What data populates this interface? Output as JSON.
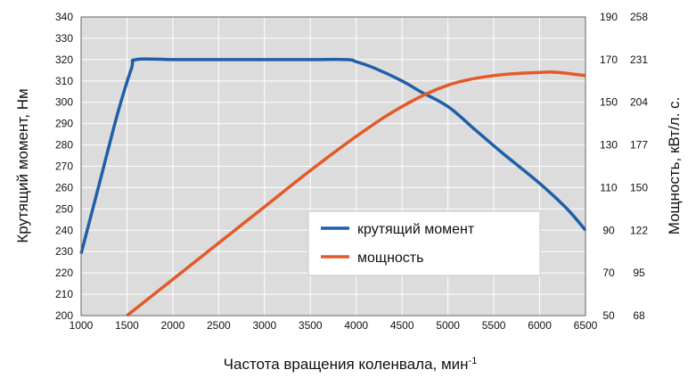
{
  "chart_data": {
    "type": "line",
    "title": "",
    "xlabel": "Частота вращения коленвала, мин",
    "xlabel_superscript": "-1",
    "ylabel_left": "Крутящий момент, Нм",
    "ylabel_right": "Мощность, кВт/л. с.",
    "xlim": [
      1000,
      6500
    ],
    "x_ticks": [
      "1000",
      "1500",
      "2000",
      "2500",
      "3000",
      "3500",
      "4000",
      "4500",
      "5000",
      "5500",
      "6000",
      "6500"
    ],
    "ylim_left": [
      200,
      340
    ],
    "y_left_ticks": [
      "200",
      "210",
      "220",
      "230",
      "240",
      "250",
      "260",
      "270",
      "280",
      "290",
      "300",
      "310",
      "320",
      "330",
      "340"
    ],
    "y_right_kw_ticks": [
      "50",
      "70",
      "90",
      "110",
      "130",
      "150",
      "170",
      "190"
    ],
    "y_right_hp_ticks": [
      "68",
      "95",
      "122",
      "150",
      "177",
      "204",
      "231",
      "258"
    ],
    "ylim_right_kw": [
      50,
      190
    ],
    "grid": true,
    "legend_position": "center-right",
    "colors": {
      "torque": "#1f5fa8",
      "power": "#e35a2a",
      "grid": "#ffffff",
      "plot_bg": "#dcdcdc",
      "frame": "#666666"
    },
    "series": [
      {
        "name": "крутящий момент",
        "axis": "left",
        "x": [
          1000,
          1200,
          1400,
          1550,
          1600,
          2000,
          2500,
          3000,
          3500,
          3900,
          4000,
          4200,
          4500,
          4700,
          5000,
          5300,
          5600,
          6000,
          6300,
          6500
        ],
        "y": [
          229,
          262,
          295,
          316,
          320,
          320,
          320,
          320,
          320,
          320,
          319,
          316,
          310,
          305,
          298,
          287,
          276,
          262,
          250,
          240
        ]
      },
      {
        "name": "мощность",
        "axis": "right",
        "x": [
          1500,
          2000,
          2500,
          3000,
          3500,
          4000,
          4500,
          5000,
          5500,
          6000,
          6200,
          6500
        ],
        "y": [
          50,
          67,
          84,
          101,
          118,
          134,
          148,
          158,
          162.5,
          164,
          164,
          162.5
        ]
      }
    ]
  }
}
